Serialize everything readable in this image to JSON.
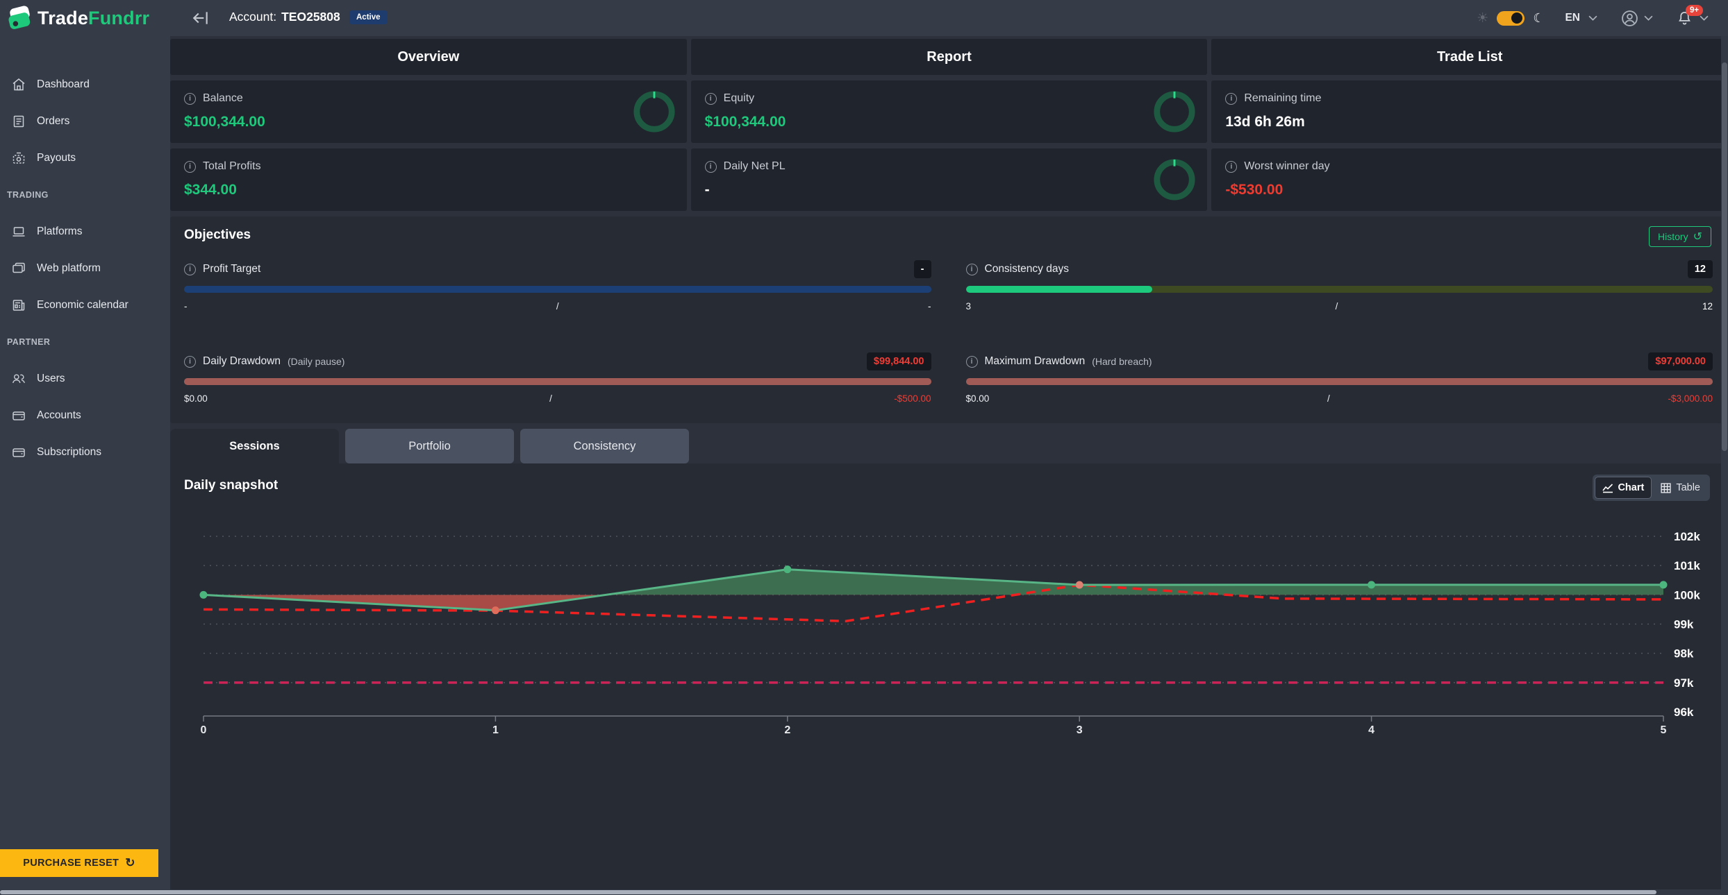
{
  "brand": {
    "name_primary": "Trade",
    "name_secondary": "Fundrr"
  },
  "topbar": {
    "account_label": "Account:",
    "account_id": "TEO25808",
    "status_badge": "Active",
    "language": "EN",
    "notification_badge": "9+"
  },
  "sidebar": {
    "sections": [
      {
        "header": "",
        "items": [
          {
            "label": "Dashboard"
          },
          {
            "label": "Orders"
          },
          {
            "label": "Payouts"
          }
        ]
      },
      {
        "header": "TRADING",
        "items": [
          {
            "label": "Platforms"
          },
          {
            "label": "Web platform"
          },
          {
            "label": "Economic calendar"
          }
        ]
      },
      {
        "header": "PARTNER",
        "items": [
          {
            "label": "Users"
          },
          {
            "label": "Accounts"
          },
          {
            "label": "Subscriptions"
          }
        ]
      }
    ],
    "purchase_reset": "PURCHASE RESET"
  },
  "page_tabs": [
    {
      "label": "Overview"
    },
    {
      "label": "Report"
    },
    {
      "label": "Trade List"
    }
  ],
  "stat_cards": [
    {
      "label": "Balance",
      "value": "$100,344.00",
      "value_color": "#1ec97c"
    },
    {
      "label": "Equity",
      "value": "$100,344.00",
      "value_color": "#1ec97c"
    },
    {
      "label": "Remaining time",
      "value": "13d 6h 26m",
      "value_color": "#ffffff"
    },
    {
      "label": "Total Profits",
      "value": "$344.00",
      "value_color": "#1ec97c"
    },
    {
      "label": "Daily Net PL",
      "value": "-",
      "value_color": "#ffffff"
    },
    {
      "label": "Worst winner day",
      "value": "-$530.00",
      "value_color": "#ef3b30"
    }
  ],
  "objectives": {
    "title": "Objectives",
    "history_button": "History",
    "items": [
      {
        "label": "Profit Target",
        "sublabel": "",
        "value": "-",
        "value_color": "#ffffff",
        "bar_fill": "#1c4076",
        "bar_track": "#1c4076",
        "bar_pct": "100%",
        "scale_min": "-",
        "scale_sep": "/",
        "scale_max": "-",
        "scale_max_color": "#ffffff"
      },
      {
        "label": "Consistency days",
        "sublabel": "",
        "value": "12",
        "value_color": "#ffffff",
        "bar_fill": "#1dc97c",
        "bar_track": "#3d4a22",
        "bar_pct": "25%",
        "scale_min": "3",
        "scale_sep": "/",
        "scale_max": "12",
        "scale_max_color": "#ffffff"
      },
      {
        "label": "Daily Drawdown",
        "sublabel": "(Daily pause)",
        "value": "$99,844.00",
        "value_color": "#f03c34",
        "bar_fill": "#a05b56",
        "bar_track": "#a05b56",
        "bar_pct": "100%",
        "scale_min": "$0.00",
        "scale_sep": "/",
        "scale_max": "-$500.00",
        "scale_max_color": "#f03c34"
      },
      {
        "label": "Maximum Drawdown",
        "sublabel": "(Hard breach)",
        "value": "$97,000.00",
        "value_color": "#f03c34",
        "bar_fill": "#a05b56",
        "bar_track": "#a05b56",
        "bar_pct": "100%",
        "scale_min": "$0.00",
        "scale_sep": "/",
        "scale_max": "-$3,000.00",
        "scale_max_color": "#f03c34"
      }
    ]
  },
  "session_tabs": [
    {
      "label": "Sessions"
    },
    {
      "label": "Portfolio"
    },
    {
      "label": "Consistency"
    }
  ],
  "snapshot": {
    "title": "Daily snapshot",
    "chart_button": "Chart",
    "table_button": "Table"
  },
  "chart_data": {
    "type": "area",
    "title": "Daily snapshot",
    "x": [
      0,
      1,
      2,
      3,
      4,
      5
    ],
    "xticks": [
      "0",
      "1",
      "2",
      "3",
      "4",
      "5"
    ],
    "ylim": [
      96000,
      102000
    ],
    "yticks": [
      {
        "value": 102000,
        "label": "102k"
      },
      {
        "value": 101000,
        "label": "101k"
      },
      {
        "value": 100000,
        "label": "100k"
      },
      {
        "value": 99000,
        "label": "99k"
      },
      {
        "value": 98000,
        "label": "98k"
      },
      {
        "value": 97000,
        "label": "97k"
      },
      {
        "value": 96000,
        "label": "96k"
      }
    ],
    "grid": "dotted-horizontal",
    "legend": "none",
    "series": [
      {
        "name": "Balance",
        "type": "area-line",
        "baseline": 100000,
        "color": "#57b586",
        "fill_above": "#3e6e50",
        "fill_below": "#a84b47",
        "values": [
          100000,
          99470,
          100870,
          100340,
          100344,
          100344
        ],
        "point_colors": [
          "#4cb57e",
          "#e06c5c",
          "#4cb57e",
          "#dd8272",
          "#4cb57e",
          "#4cb57e"
        ]
      },
      {
        "name": "Daily drawdown limit",
        "type": "dashed-line",
        "color": "#ef2020",
        "x": [
          0,
          1,
          2.2,
          3,
          3.7,
          5
        ],
        "values": [
          99500,
          99460,
          99100,
          100340,
          99870,
          99844
        ]
      },
      {
        "name": "Maximum drawdown limit",
        "type": "dashed-line",
        "color": "#ce2356",
        "x": [
          0,
          5
        ],
        "values": [
          97000,
          97000
        ]
      }
    ]
  }
}
